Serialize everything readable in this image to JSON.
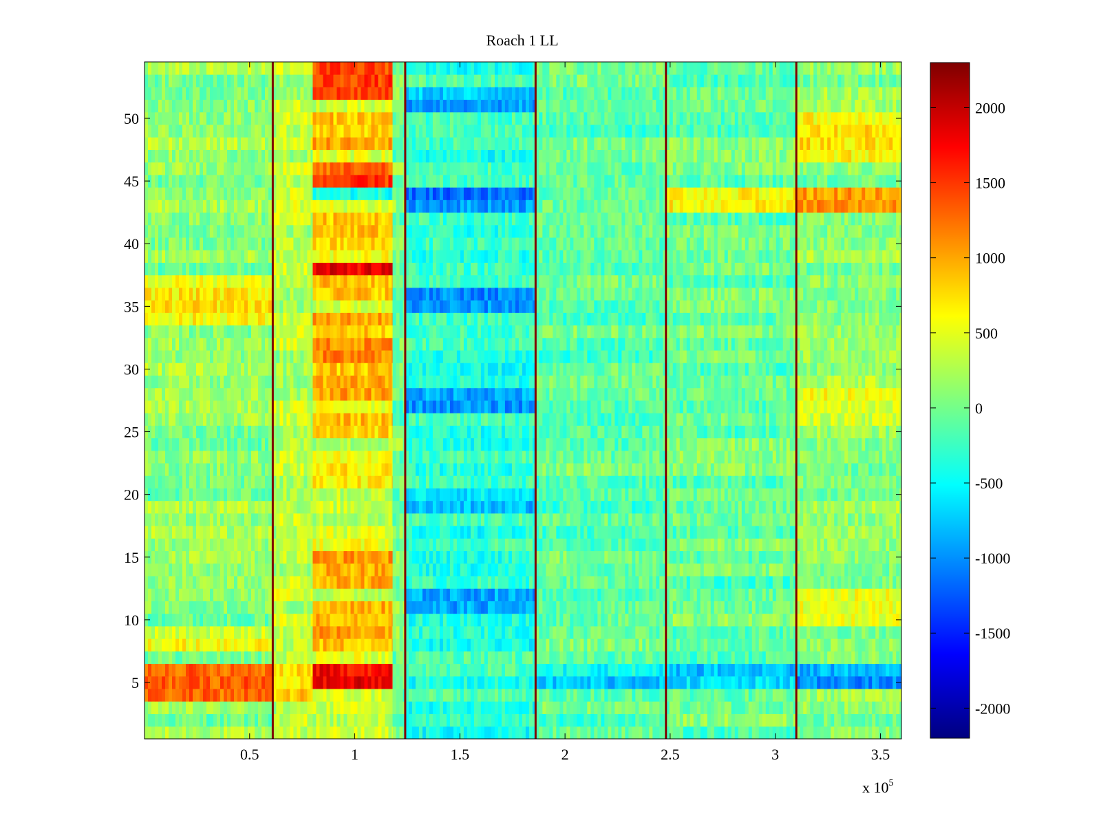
{
  "chart_data": {
    "type": "heatmap",
    "title": "Roach 1 LL",
    "xlabel": "",
    "ylabel": "",
    "x_exponent_label": "x 10",
    "x_exponent_power": "5",
    "xlim": [
      0,
      3.6
    ],
    "ylim": [
      0.5,
      54.5
    ],
    "x_ticks": [
      0.5,
      1,
      1.5,
      2,
      2.5,
      3,
      3.5
    ],
    "x_tick_labels": [
      "0.5",
      "1",
      "1.5",
      "2",
      "2.5",
      "3",
      "3.5"
    ],
    "y_ticks": [
      5,
      10,
      15,
      20,
      25,
      30,
      35,
      40,
      45,
      50
    ],
    "y_tick_labels": [
      "5",
      "10",
      "15",
      "20",
      "25",
      "30",
      "35",
      "40",
      "45",
      "50"
    ],
    "rows": 54,
    "colormap": "jet",
    "colorbar": {
      "clim": [
        -2200,
        2300
      ],
      "ticks": [
        -2000,
        -1500,
        -1000,
        -500,
        0,
        500,
        1000,
        1500,
        2000
      ],
      "tick_labels": [
        "-2000",
        "-1500",
        "-1000",
        "-500",
        "0",
        "500",
        "1000",
        "1500",
        "2000"
      ],
      "colors": [
        "#00007f",
        "#0000ff",
        "#007fff",
        "#00ffff",
        "#7fff7f",
        "#ffff00",
        "#ff7f00",
        "#ff0000",
        "#7f0000"
      ]
    },
    "segment_boundaries": [
      0,
      0.61,
      0.8,
      1.18,
      1.24,
      1.86,
      2.48,
      3.1,
      3.6
    ],
    "spike_lines_x": [
      0.61,
      1.24,
      1.86,
      2.48,
      3.1
    ],
    "spike_value": 2300,
    "segments": [
      {
        "x_range": [
          0,
          0.61
        ],
        "base": 100,
        "row_values": [
          {
            "rows": [
              4,
              7
            ],
            "value": 1200
          },
          {
            "rows": [
              8,
              10
            ],
            "value": 500
          },
          {
            "rows": [
              34,
              38
            ],
            "value": 600
          }
        ]
      },
      {
        "x_range": [
          0.61,
          0.8
        ],
        "base": 300,
        "row_values": [
          {
            "rows": [
              4,
              7
            ],
            "value": 900
          }
        ]
      },
      {
        "x_range": [
          0.8,
          1.18
        ],
        "base": 400,
        "row_values": [
          {
            "rows": [
              5,
              7
            ],
            "value": 1700
          },
          {
            "rows": [
              8,
              12
            ],
            "value": 1000
          },
          {
            "rows": [
              13,
              16
            ],
            "value": 1100
          },
          {
            "rows": [
              21,
              24
            ],
            "value": 700
          },
          {
            "rows": [
              25,
              27
            ],
            "value": 800
          },
          {
            "rows": [
              28,
              35
            ],
            "value": 1000
          },
          {
            "rows": [
              36,
              38
            ],
            "value": 900
          },
          {
            "rows": [
              38,
              39
            ],
            "value": 1700
          },
          {
            "rows": [
              40,
              43
            ],
            "value": 800
          },
          {
            "rows": [
              44,
              45
            ],
            "value": -400
          },
          {
            "rows": [
              45,
              47
            ],
            "value": 1400
          },
          {
            "rows": [
              48,
              51
            ],
            "value": 900
          },
          {
            "rows": [
              52,
              55
            ],
            "value": 1300
          }
        ]
      },
      {
        "x_range": [
          1.18,
          1.24
        ],
        "base": 0,
        "row_values": []
      },
      {
        "x_range": [
          1.24,
          1.86
        ],
        "base": -300,
        "row_values": [
          {
            "rows": [
              11,
              13
            ],
            "value": -900
          },
          {
            "rows": [
              27,
              29
            ],
            "value": -1000
          },
          {
            "rows": [
              35,
              37
            ],
            "value": -1100
          },
          {
            "rows": [
              43,
              45
            ],
            "value": -1100
          },
          {
            "rows": [
              51,
              53
            ],
            "value": -900
          },
          {
            "rows": [
              19,
              21
            ],
            "value": -700
          }
        ]
      },
      {
        "x_range": [
          1.86,
          2.48
        ],
        "base": -100,
        "row_values": [
          {
            "rows": [
              5,
              7
            ],
            "value": -600
          }
        ]
      },
      {
        "x_range": [
          2.48,
          3.1
        ],
        "base": -50,
        "row_values": [
          {
            "rows": [
              5,
              7
            ],
            "value": -800
          },
          {
            "rows": [
              43,
              45
            ],
            "value": 500
          }
        ]
      },
      {
        "x_range": [
          3.1,
          3.6
        ],
        "base": 100,
        "row_values": [
          {
            "rows": [
              5,
              7
            ],
            "value": -900
          },
          {
            "rows": [
              43,
              45
            ],
            "value": 1100
          },
          {
            "rows": [
              47,
              51
            ],
            "value": 600
          },
          {
            "rows": [
              26,
              29
            ],
            "value": 500
          },
          {
            "rows": [
              10,
              13
            ],
            "value": 400
          }
        ]
      }
    ]
  }
}
